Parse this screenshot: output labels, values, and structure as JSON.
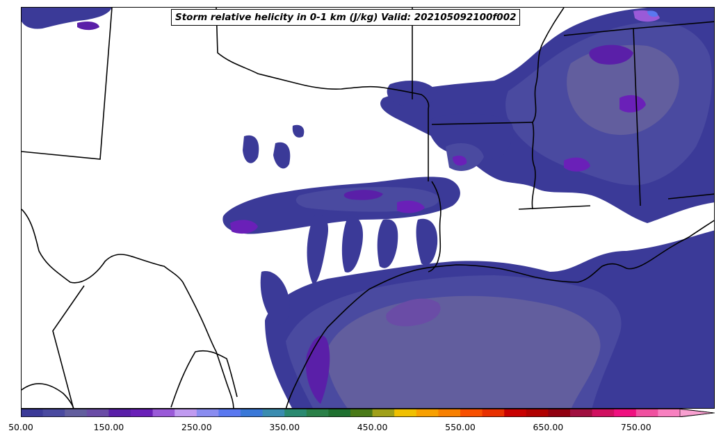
{
  "title": "Storm relative helicity in 0-1 km (J/kg) Valid: 202105092100f002",
  "colorbar": {
    "min": 50,
    "max": 800,
    "step": 25,
    "extend": "max",
    "tick_labels": [
      "50.00",
      "150.00",
      "250.00",
      "350.00",
      "450.00",
      "550.00",
      "650.00",
      "750.00"
    ],
    "colors": [
      "#3b3a98",
      "#4a4aa0",
      "#625e9e",
      "#6a4ca6",
      "#5a1fa8",
      "#6a20b8",
      "#9a5ad8",
      "#c09af0",
      "#8a8cf0",
      "#5a78f0",
      "#3a78d8",
      "#3a8cb0",
      "#2a8a70",
      "#2a8048",
      "#1f7030",
      "#4a7a18",
      "#a0a018",
      "#f0c000",
      "#f8a000",
      "#f88000",
      "#f85000",
      "#e83000",
      "#c80000",
      "#b00000",
      "#900010",
      "#a01040",
      "#d01060",
      "#f01080",
      "#f050a0",
      "#f880c0"
    ]
  }
}
